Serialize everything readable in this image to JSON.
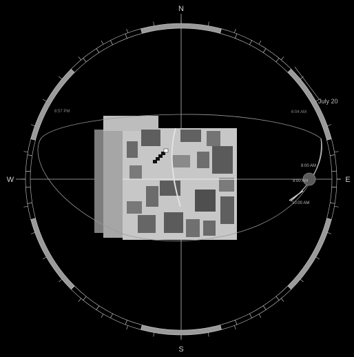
{
  "compass": {
    "north": "N",
    "south": "S",
    "east": "E",
    "west": "W"
  },
  "date_label": "July 20",
  "sunrise_label": "6:04 AM",
  "sunset_label": "8:57 PM",
  "time_labels": [
    "8:00 AM",
    "9:00 AM",
    "10:00 AM"
  ],
  "colors": {
    "background": "#000000",
    "ring_gray": "#9a9a9a",
    "line": "#a8a8a8",
    "text": "#cfcfcf",
    "map_light": "#c9c9c9",
    "map_mid": "#a9a9a9",
    "map_dark": "#5e5e5e"
  }
}
